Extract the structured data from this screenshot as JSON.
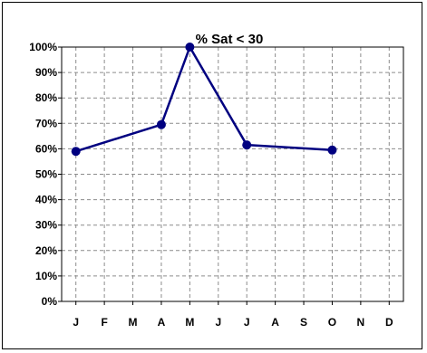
{
  "chart_data": {
    "type": "line",
    "title": "% Sat < 30",
    "xlabel": "",
    "ylabel": "",
    "categories": [
      "J",
      "F",
      "M",
      "A",
      "M",
      "J",
      "J",
      "A",
      "S",
      "O",
      "N",
      "D"
    ],
    "y_ticks": [
      "0%",
      "10%",
      "20%",
      "30%",
      "40%",
      "50%",
      "60%",
      "70%",
      "80%",
      "90%",
      "100%"
    ],
    "ylim": [
      0,
      100
    ],
    "grid": true,
    "series": [
      {
        "color": "#000080",
        "points": [
          {
            "category_index": 0,
            "value": 59
          },
          {
            "category_index": 3,
            "value": 69.5
          },
          {
            "category_index": 4,
            "value": 100
          },
          {
            "category_index": 6,
            "value": 61.5
          },
          {
            "category_index": 9,
            "value": 59.5
          }
        ]
      }
    ]
  }
}
